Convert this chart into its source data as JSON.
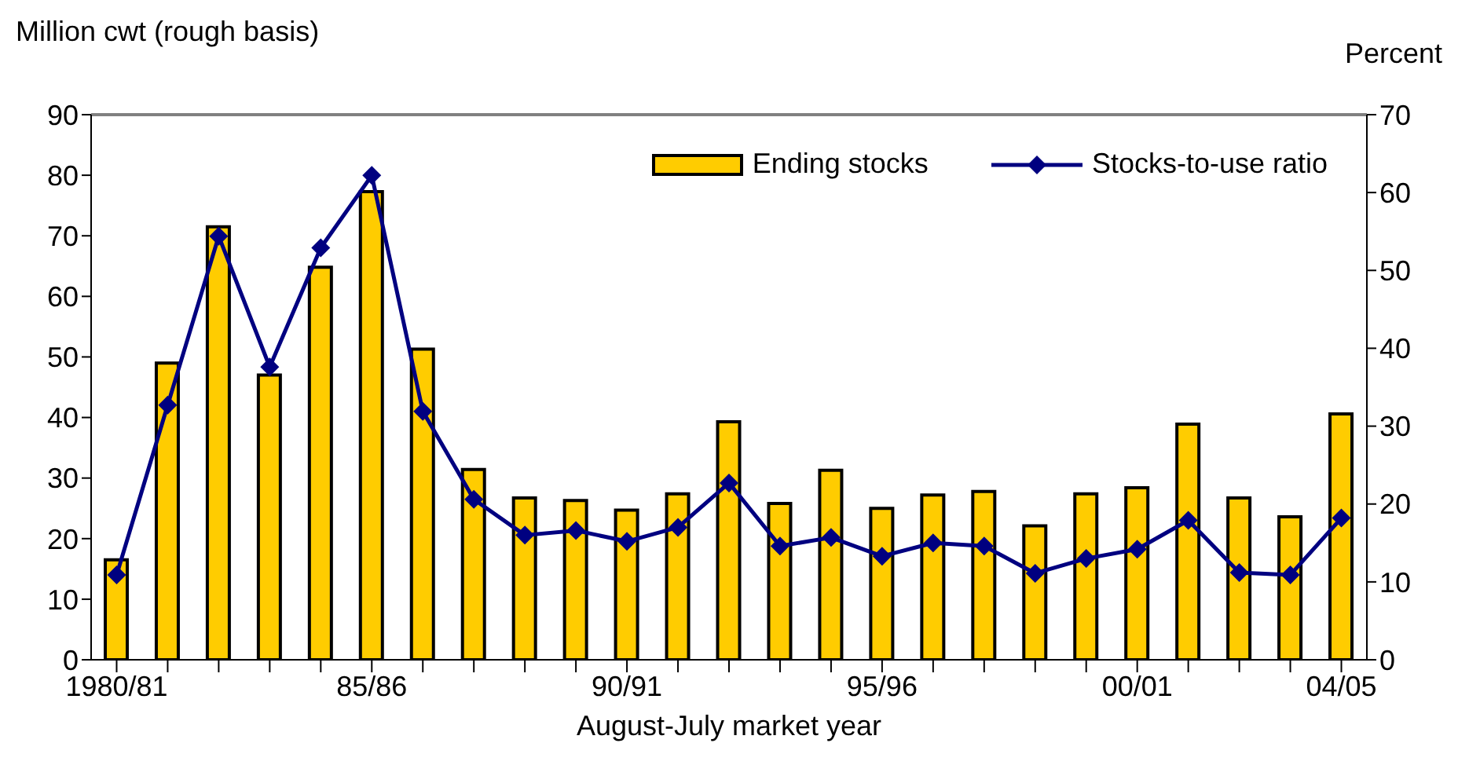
{
  "chart_data": {
    "type": "bar",
    "xlabel": "August-July market year",
    "ylabel": "Million cwt (rough basis)",
    "y2label": "Percent",
    "categories": [
      "1980/81",
      null,
      null,
      null,
      null,
      "85/86",
      null,
      null,
      null,
      null,
      "90/91",
      null,
      null,
      null,
      null,
      "95/96",
      null,
      null,
      null,
      null,
      "00/01",
      null,
      null,
      null,
      "04/05"
    ],
    "series": [
      {
        "name": "Ending stocks",
        "color": "#ffcc00",
        "values": [
          16.5,
          49,
          71.5,
          47,
          64.8,
          77.3,
          51.3,
          31.4,
          26.7,
          26.3,
          24.7,
          27.4,
          39.3,
          25.8,
          31.3,
          25,
          27.2,
          27.8,
          22.1,
          27.4,
          28.4,
          38.9,
          26.7,
          23.6,
          40.6
        ]
      },
      {
        "name": "Stocks-to-use ratio",
        "type": "line",
        "axis": "y2",
        "color": "#000080",
        "marker": "diamond",
        "values": [
          10.9,
          32.7,
          54.4,
          37.6,
          52.9,
          62.2,
          31.9,
          20.6,
          16,
          16.6,
          15.2,
          17,
          22.7,
          14.6,
          15.7,
          13.3,
          15,
          14.6,
          11.1,
          13,
          14.2,
          17.9,
          11.2,
          10.9,
          18.2
        ]
      }
    ],
    "ylim": [
      0,
      90
    ],
    "yticks": [
      0,
      10,
      20,
      30,
      40,
      50,
      60,
      70,
      80,
      90
    ],
    "y2lim": [
      0,
      70
    ],
    "y2ticks": [
      0,
      10,
      20,
      30,
      40,
      50,
      60,
      70
    ],
    "grid": false,
    "legend": "top right"
  }
}
